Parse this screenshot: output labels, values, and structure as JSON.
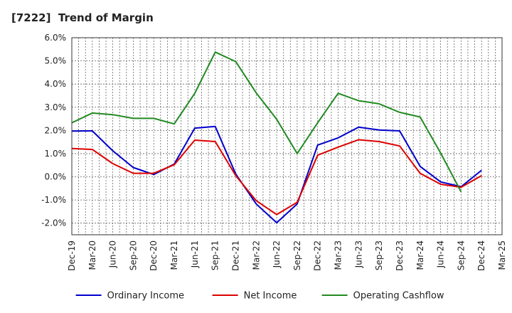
{
  "chart_data": {
    "type": "line",
    "title": "[7222]  Trend of Margin",
    "xlabel": "",
    "ylabel": "",
    "x_tick_labels": [
      "Dec-19",
      "Mar-20",
      "Jun-20",
      "Sep-20",
      "Dec-20",
      "Mar-21",
      "Jun-21",
      "Sep-21",
      "Dec-21",
      "Mar-22",
      "Jun-22",
      "Sep-22",
      "Dec-22",
      "Mar-23",
      "Jun-23",
      "Sep-23",
      "Dec-23",
      "Mar-24",
      "Jun-24",
      "Sep-24",
      "Dec-24",
      "Mar-25"
    ],
    "y_tick_labels": [
      "6.0%",
      "5.0%",
      "4.0%",
      "3.0%",
      "2.0%",
      "1.0%",
      "0.0%",
      "-1.0%",
      "-2.0%"
    ],
    "ylim": [
      -2.5,
      6.0
    ],
    "y_ticks": [
      6.0,
      5.0,
      4.0,
      3.0,
      2.0,
      1.0,
      0.0,
      -1.0,
      -2.0
    ],
    "grid": true,
    "legend_position": "bottom",
    "series": [
      {
        "name": "Ordinary Income",
        "color": "#0000cc",
        "values": [
          1.97,
          1.98,
          1.12,
          0.4,
          0.1,
          0.55,
          2.1,
          2.17,
          0.12,
          -1.17,
          -1.98,
          -1.17,
          1.37,
          1.68,
          2.14,
          2.02,
          1.98,
          0.45,
          -0.22,
          -0.43,
          0.28,
          null
        ]
      },
      {
        "name": "Net Income",
        "color": "#dd0000",
        "values": [
          1.22,
          1.18,
          0.57,
          0.15,
          0.15,
          0.52,
          1.58,
          1.52,
          0.05,
          -1.03,
          -1.63,
          -1.1,
          0.93,
          1.28,
          1.6,
          1.52,
          1.33,
          0.15,
          -0.32,
          -0.45,
          0.05,
          null
        ]
      },
      {
        "name": "Operating Cashflow",
        "color": "#228b22",
        "values": [
          2.33,
          2.75,
          2.68,
          2.52,
          2.52,
          2.28,
          3.6,
          5.38,
          4.97,
          3.62,
          2.48,
          1.0,
          2.33,
          3.6,
          3.28,
          3.15,
          2.78,
          2.58,
          1.03,
          -0.65,
          null,
          null
        ]
      }
    ]
  }
}
